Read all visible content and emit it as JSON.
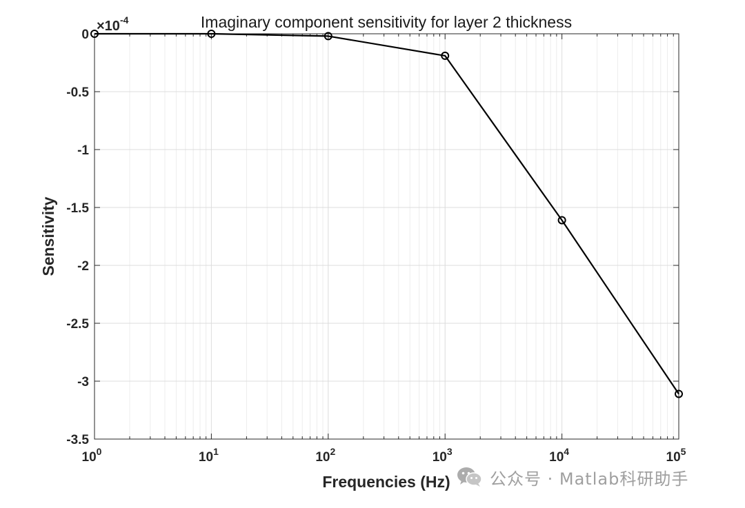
{
  "chart_data": {
    "type": "line",
    "title": "Imaginary component sensitivity for layer 2 thickness",
    "xlabel": "Frequencies (Hz)",
    "ylabel": "Sensitivity",
    "x_scale": "log",
    "xlim": [
      1,
      100000
    ],
    "ylim": [
      -3.5,
      0
    ],
    "y_multiplier": {
      "base": "×10",
      "exponent": "-4"
    },
    "x_ticks": [
      {
        "value": 1,
        "base": "10",
        "exp": "0"
      },
      {
        "value": 10,
        "base": "10",
        "exp": "1"
      },
      {
        "value": 100,
        "base": "10",
        "exp": "2"
      },
      {
        "value": 1000,
        "base": "10",
        "exp": "3"
      },
      {
        "value": 10000,
        "base": "10",
        "exp": "4"
      },
      {
        "value": 100000,
        "base": "10",
        "exp": "5"
      }
    ],
    "y_ticks": [
      {
        "value": 0,
        "label": "0"
      },
      {
        "value": -0.5,
        "label": "-0.5"
      },
      {
        "value": -1,
        "label": "-1"
      },
      {
        "value": -1.5,
        "label": "-1.5"
      },
      {
        "value": -2,
        "label": "-2"
      },
      {
        "value": -2.5,
        "label": "-2.5"
      },
      {
        "value": -3,
        "label": "-3"
      },
      {
        "value": -3.5,
        "label": "-3.5"
      }
    ],
    "grid": true,
    "series": [
      {
        "color": "#000000",
        "marker": "circle",
        "points": [
          {
            "x": 1,
            "y": 0
          },
          {
            "x": 10,
            "y": 0.0
          },
          {
            "x": 100,
            "y": -0.02
          },
          {
            "x": 1000,
            "y": -0.19
          },
          {
            "x": 10000,
            "y": -1.61
          },
          {
            "x": 100000,
            "y": -3.11
          }
        ]
      }
    ]
  },
  "watermark": {
    "icon": "wechat-icon",
    "text": "公众号 · Matlab科研助手"
  }
}
